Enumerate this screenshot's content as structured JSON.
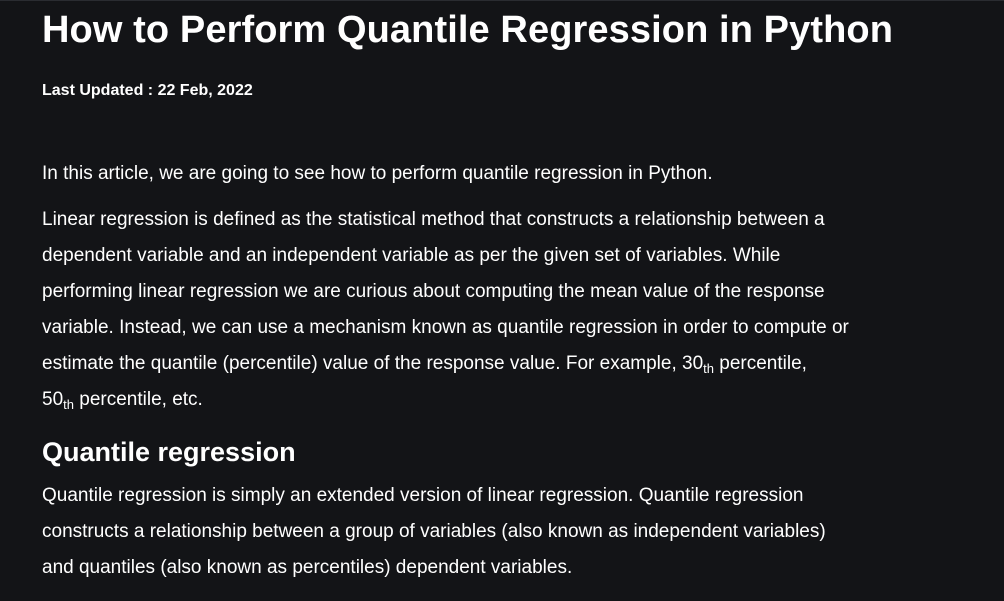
{
  "article": {
    "title": "How to Perform Quantile Regression in Python",
    "last_updated": "Last Updated : 22 Feb, 2022",
    "intro": "In this article, we are going to see how to perform quantile regression in Python.",
    "paragraph1": {
      "line1": "Linear regression is defined as the statistical method that constructs a relationship between a",
      "line2": "dependent variable and an independent variable as per the given set of variables. While",
      "line3": "performing linear regression we are curious about computing the mean value of the response",
      "line4": "variable. Instead, we can use a mechanism known as quantile regression in order to compute or",
      "line5_prefix": "estimate the quantile (percentile) value of the response value. For example, 30",
      "line5_sub": "th",
      "line5_suffix": " percentile,",
      "line6_number": "50",
      "line6_sub": "th",
      "line6_suffix": " percentile, etc."
    },
    "section_heading": "Quantile regression",
    "paragraph2": {
      "line1": "Quantile regression is simply an extended version of linear regression. Quantile regression",
      "line2": "constructs a relationship between a group of variables (also known as independent variables)",
      "line3": "and quantiles (also known as percentiles) dependent variables."
    }
  },
  "colors": {
    "background": "#131417",
    "text": "#ffffff"
  }
}
